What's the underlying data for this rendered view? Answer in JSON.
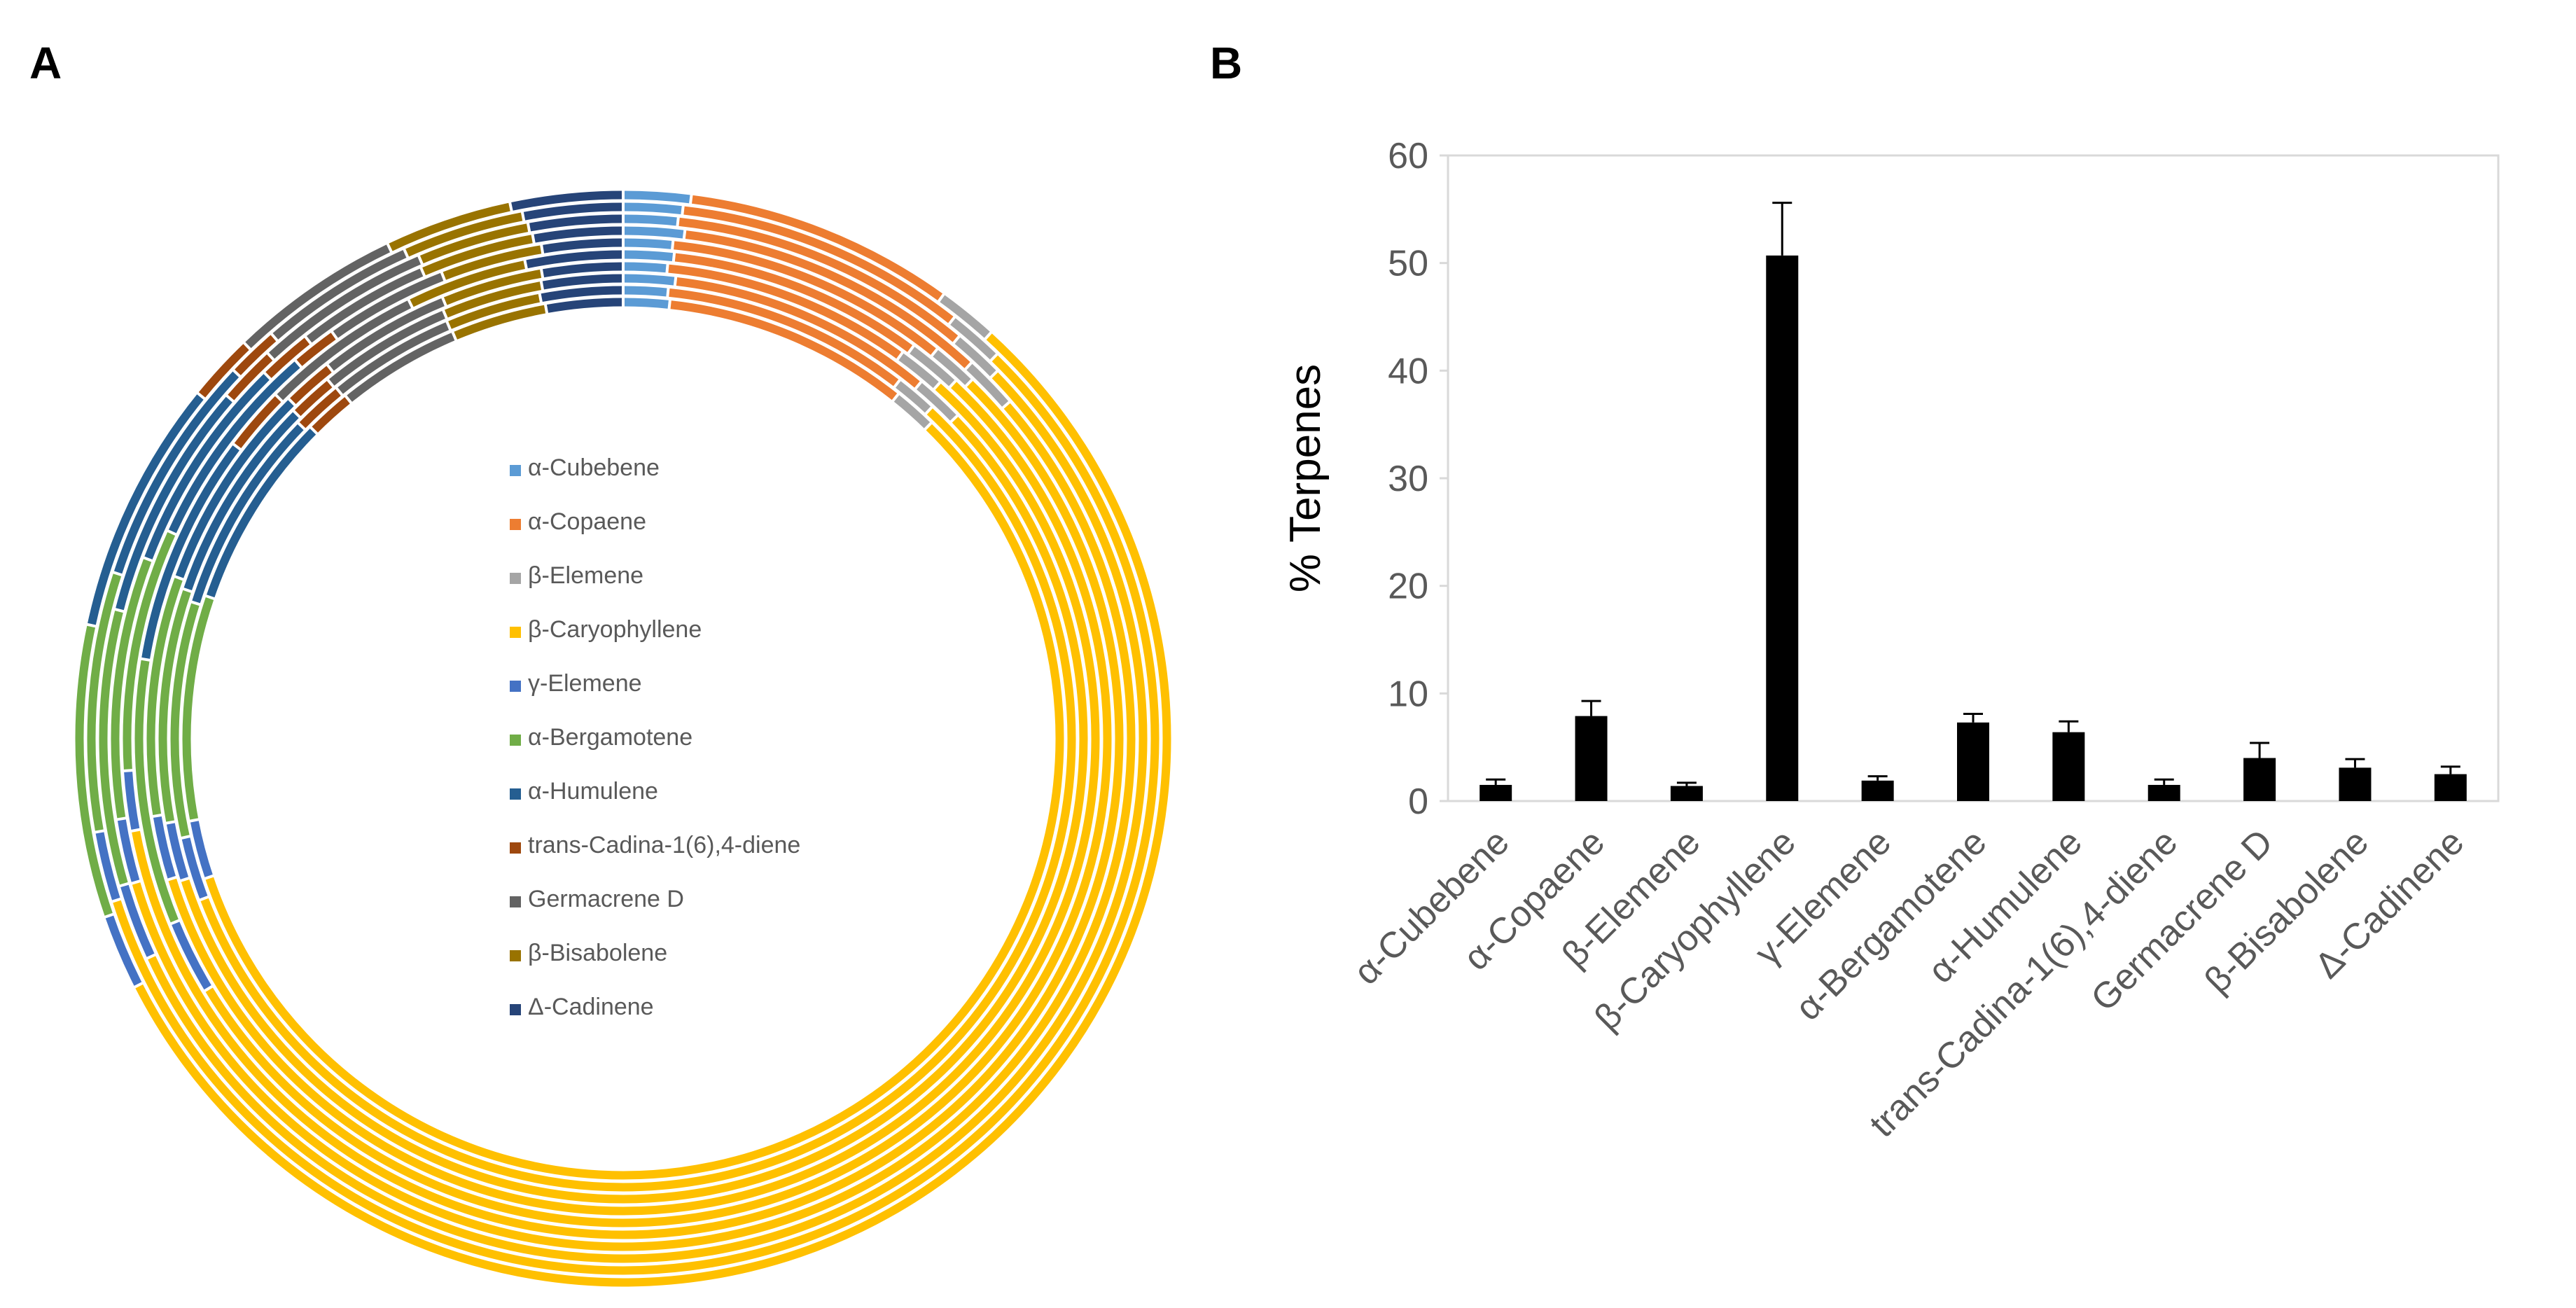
{
  "panels": {
    "a_label": "A",
    "b_label": "B"
  },
  "chart_data": [
    {
      "type": "donut",
      "panel": "A",
      "description": "multi-ring donut, 10 replicate rings, composition of terpenes",
      "rings": 10,
      "series": [
        {
          "name": "α-Cubebene",
          "color": "#5B9BD5"
        },
        {
          "name": "α-Copaene",
          "color": "#ED7D31"
        },
        {
          "name": "β-Elemene",
          "color": "#A5A5A5"
        },
        {
          "name": "β-Caryophyllene",
          "color": "#FFC000"
        },
        {
          "name": "γ-Elemene",
          "color": "#4472C4"
        },
        {
          "name": "α-Bergamotene",
          "color": "#70AD47"
        },
        {
          "name": "α-Humulene",
          "color": "#255E91"
        },
        {
          "name": "trans-Cadina-1(6),4-diene",
          "color": "#9E480E"
        },
        {
          "name": "Germacrene D",
          "color": "#636363"
        },
        {
          "name": "β-Bisabolene",
          "color": "#997300"
        },
        {
          "name": "Δ-Cadinene",
          "color": "#264478"
        }
      ],
      "ring_values": [
        [
          1.8,
          7.2,
          1.6,
          50.5,
          2.0,
          7.8,
          6.8,
          1.8,
          4.6,
          3.4,
          3.0
        ],
        [
          1.6,
          7.9,
          1.5,
          51.8,
          1.9,
          7.0,
          6.3,
          1.4,
          4.2,
          3.3,
          2.7
        ],
        [
          1.5,
          8.4,
          1.4,
          49.6,
          2.1,
          7.6,
          6.6,
          1.6,
          4.9,
          3.1,
          2.6
        ],
        [
          1.7,
          8.8,
          1.5,
          50.2,
          1.8,
          7.3,
          6.1,
          1.5,
          3.7,
          3.2,
          2.5
        ],
        [
          1.4,
          8.1,
          1.3,
          52.6,
          1.7,
          6.9,
          6.0,
          1.3,
          3.5,
          2.9,
          2.3
        ],
        [
          1.5,
          7.6,
          1.6,
          48.9,
          2.2,
          7.9,
          6.9,
          1.9,
          4.8,
          3.6,
          2.9
        ],
        [
          1.3,
          7.4,
          1.4,
          51.2,
          1.9,
          7.1,
          6.2,
          1.5,
          3.9,
          3.0,
          2.4
        ],
        [
          1.6,
          8.2,
          1.5,
          50.7,
          1.8,
          7.2,
          6.4,
          1.4,
          4.1,
          3.1,
          2.5
        ],
        [
          1.4,
          7.8,
          1.3,
          50.4,
          2.0,
          7.4,
          6.5,
          1.6,
          4.0,
          3.0,
          2.6
        ],
        [
          1.5,
          8.0,
          1.4,
          51.0,
          1.9,
          7.3,
          6.4,
          1.5,
          4.0,
          3.1,
          2.5
        ]
      ]
    },
    {
      "type": "bar",
      "panel": "B",
      "categories": [
        "α-Cubebene",
        "α-Copaene",
        "β-Elemene",
        "β-Caryophyllene",
        "γ-Elemene",
        "α-Bergamotene",
        "α-Humulene",
        "trans-Cadina-1(6),4-diene",
        "Germacrene D",
        "β-Bisabolene",
        "Δ-Cadinene"
      ],
      "values": [
        1.5,
        7.9,
        1.4,
        50.7,
        1.9,
        7.3,
        6.4,
        1.5,
        4.0,
        3.1,
        2.5
      ],
      "errors": [
        0.5,
        1.4,
        0.3,
        4.9,
        0.4,
        0.8,
        1.0,
        0.5,
        1.4,
        0.8,
        0.7
      ],
      "title": "",
      "xlabel": "",
      "ylabel": "% Terpenes",
      "ylim": [
        0,
        60
      ],
      "yticks": [
        0,
        10,
        20,
        30,
        40,
        50,
        60
      ],
      "bar_color": "#000000",
      "grid": false
    }
  ]
}
